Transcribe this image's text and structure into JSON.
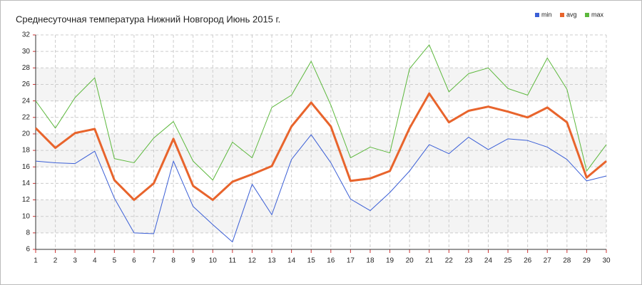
{
  "chart_data": {
    "type": "line",
    "title": "Среднесуточная температура Нижний Новгород  Июнь 2015 г.",
    "x": [
      1,
      2,
      3,
      4,
      5,
      6,
      7,
      8,
      9,
      10,
      11,
      12,
      13,
      14,
      15,
      16,
      17,
      18,
      19,
      20,
      21,
      22,
      23,
      24,
      25,
      26,
      27,
      28,
      29,
      30
    ],
    "xlim": [
      1,
      30
    ],
    "xticks": [
      1,
      2,
      3,
      4,
      5,
      6,
      7,
      8,
      9,
      10,
      11,
      12,
      13,
      14,
      15,
      16,
      17,
      18,
      19,
      20,
      21,
      22,
      23,
      24,
      25,
      26,
      27,
      28,
      29,
      30
    ],
    "ylim": [
      6,
      32
    ],
    "yticks": [
      6,
      8,
      10,
      12,
      14,
      16,
      18,
      20,
      22,
      24,
      26,
      28,
      30,
      32
    ],
    "grid": true,
    "legend": "top-right",
    "series": [
      {
        "name": "min",
        "color": "#3b5fd6",
        "width": 1,
        "values": [
          16.7,
          16.5,
          16.4,
          17.9,
          12.2,
          8.0,
          7.9,
          16.7,
          11.2,
          9.0,
          6.9,
          13.9,
          10.2,
          16.9,
          19.9,
          16.5,
          12.1,
          10.7,
          12.9,
          15.5,
          18.7,
          17.6,
          19.6,
          18.1,
          19.4,
          19.2,
          18.4,
          16.9,
          14.3,
          14.9
        ]
      },
      {
        "name": "avg",
        "color": "#e8642c",
        "width": 3,
        "values": [
          20.7,
          18.3,
          20.1,
          20.6,
          14.4,
          12.0,
          14.0,
          19.4,
          13.7,
          12.0,
          14.2,
          15.1,
          16.1,
          20.9,
          23.8,
          20.9,
          14.3,
          14.6,
          15.5,
          20.7,
          24.9,
          21.4,
          22.8,
          23.3,
          22.7,
          22.0,
          23.2,
          21.4,
          14.7,
          16.7
        ]
      },
      {
        "name": "max",
        "color": "#5cb83c",
        "width": 1,
        "values": [
          24.0,
          20.7,
          24.4,
          26.8,
          17.0,
          16.5,
          19.5,
          21.5,
          16.7,
          14.4,
          19.0,
          17.1,
          23.2,
          24.7,
          28.8,
          23.5,
          17.1,
          18.4,
          17.7,
          27.9,
          30.8,
          25.1,
          27.3,
          28.0,
          25.5,
          24.7,
          29.2,
          25.4,
          15.5,
          18.7
        ]
      }
    ]
  }
}
